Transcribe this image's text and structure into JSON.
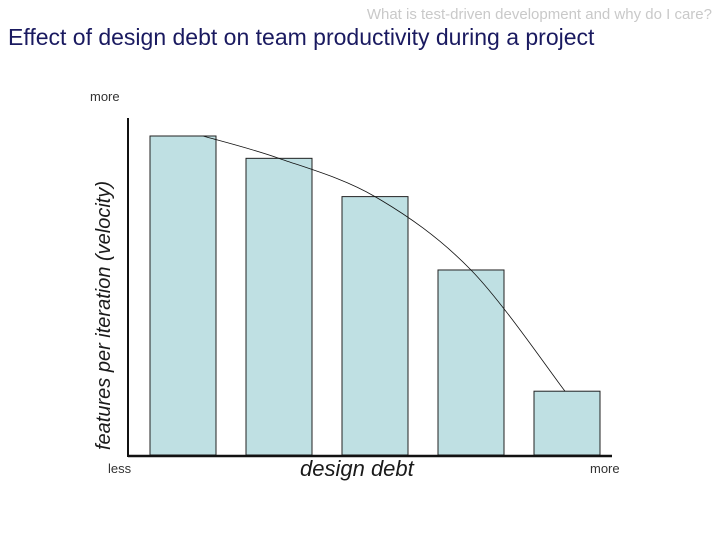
{
  "header": {
    "note": "What is test-driven development and why do I care?",
    "title": "Effect of design debt on team productivity during a project"
  },
  "colors": {
    "title": "#1a1a60",
    "bar_fill": "#bfe0e3",
    "bar_stroke": "#222222",
    "axis": "#111111"
  },
  "chart_data": {
    "type": "bar",
    "categories": [
      "",
      "",
      "",
      "",
      ""
    ],
    "values": [
      100,
      93,
      81,
      58,
      20
    ],
    "ylim": [
      0,
      100
    ],
    "xlabel": "design debt",
    "ylabel": "features per iteration (velocity)",
    "y_axis_top_label": "more",
    "x_axis_left_label": "less",
    "x_axis_right_label": "more",
    "trend_curve": true,
    "grid": false,
    "legend": "none"
  }
}
